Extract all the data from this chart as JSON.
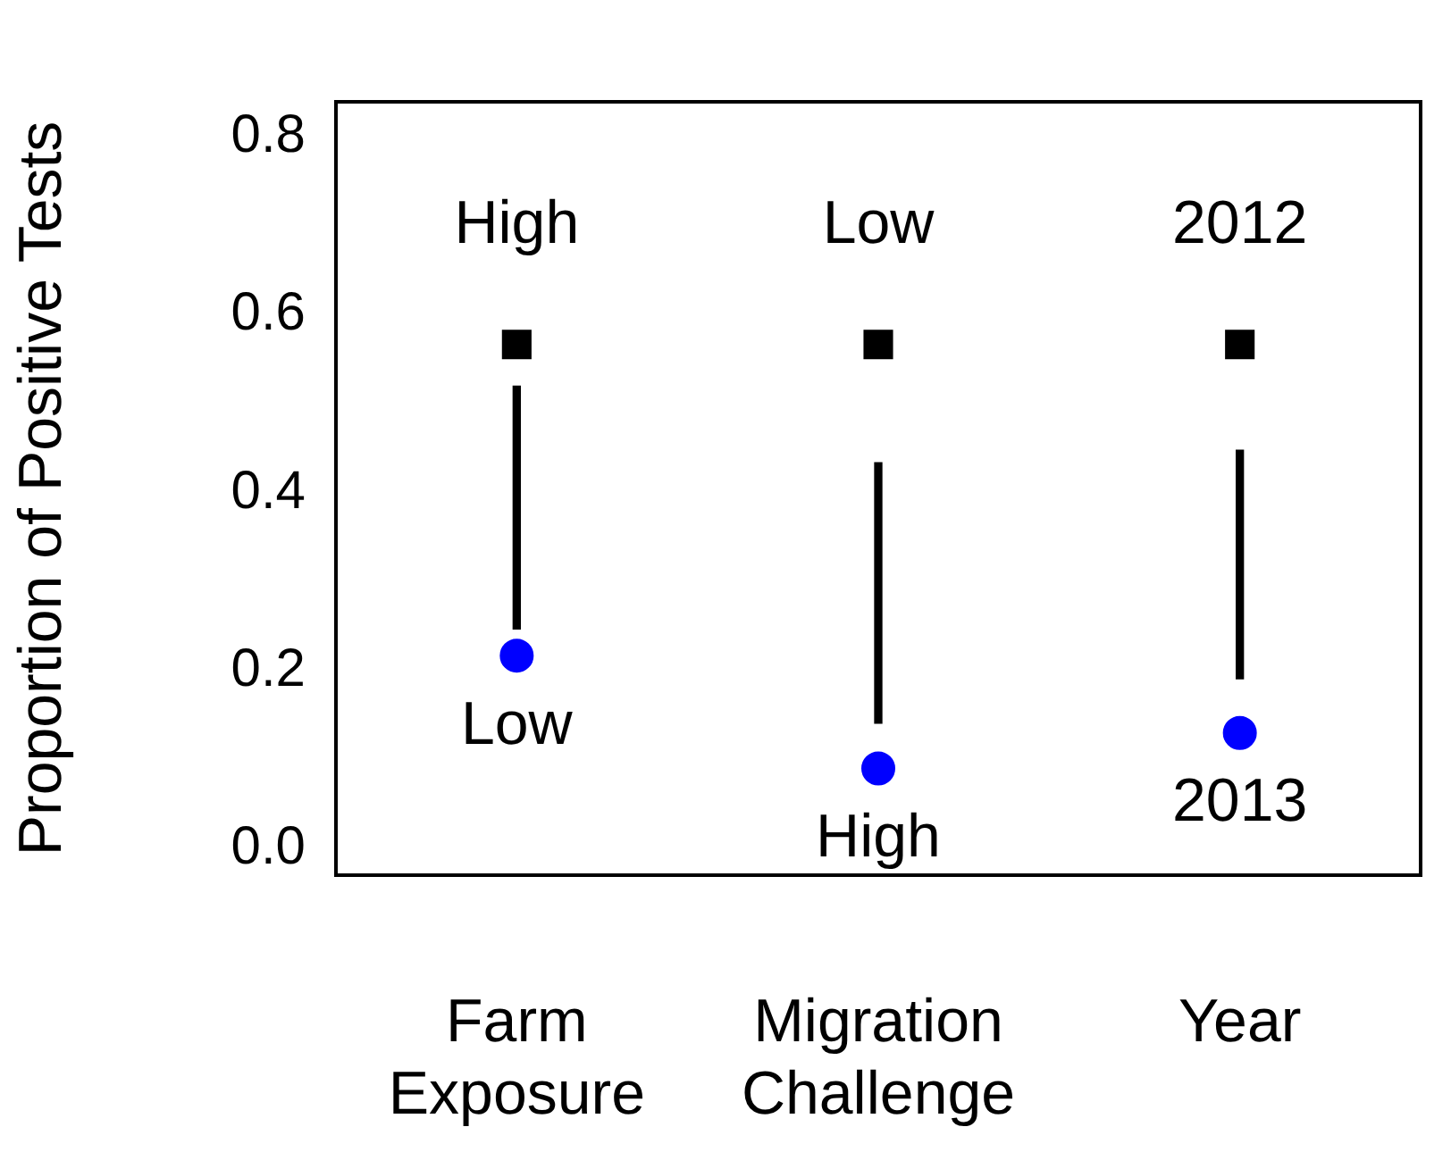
{
  "chart_data": {
    "type": "scatter",
    "ylabel": "Proportion of Positive Tests",
    "categories": [
      "Farm Exposure",
      "Migration Challenge",
      "Year"
    ],
    "series": [
      {
        "color": "#000000",
        "marker": "square",
        "values": [
          0.567,
          0.567,
          0.567
        ]
      },
      {
        "color": "#0000ff",
        "marker": "circle",
        "values": [
          0.217,
          0.09,
          0.13
        ]
      },
      {
        "type": "bar",
        "color": "#000000",
        "base": [
          0.247,
          0.141,
          0.191
        ],
        "values": [
          0.273,
          0.293,
          0.257
        ]
      }
    ],
    "ylim": [
      -0.03,
      0.84
    ],
    "yticks": [
      {
        "value": 0,
        "label": "0.0"
      },
      {
        "value": 0.2,
        "label": "0.2"
      },
      {
        "value": 0.4,
        "label": "0.4"
      },
      {
        "value": 0.6,
        "label": "0.6"
      },
      {
        "value": 0.8,
        "label": "0.8"
      }
    ],
    "annotations": [
      {
        "text": "High",
        "x": "Farm Exposure",
        "y": 0.567
      },
      {
        "text": "Low",
        "x": "Farm Exposure",
        "y": 0.217
      },
      {
        "text": "Low",
        "x": "Migration Challenge",
        "y": 0.567
      },
      {
        "text": "High",
        "x": "Migration Challenge",
        "y": 0.09
      },
      {
        "text": "2012",
        "x": "Year",
        "y": 0.567
      },
      {
        "text": "2013",
        "x": "Year",
        "y": 0.13
      }
    ]
  }
}
